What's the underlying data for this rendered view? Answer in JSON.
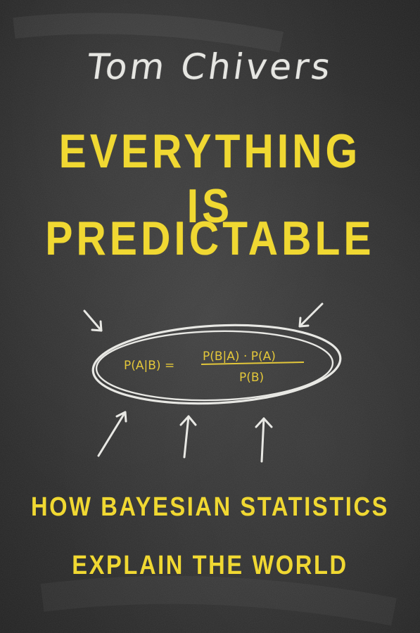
{
  "cover": {
    "author": "Tom Chivers",
    "title_line1": "EVERYTHING IS",
    "title_line2": "PREDICTABLE",
    "formula_lhs": "P(A|B) =",
    "formula_numerator": "P(B|A) · P(A)",
    "formula_denominator": "P(B)",
    "subtitle_line1": "HOW BAYESIAN STATISTICS",
    "subtitle_line2": "EXPLAIN THE WORLD"
  },
  "colors": {
    "background": "#2d2d2d",
    "chalk_white": "#e6e6e2",
    "chalk_yellow": "#f0d832"
  },
  "icons": [
    "arrow-icon"
  ]
}
